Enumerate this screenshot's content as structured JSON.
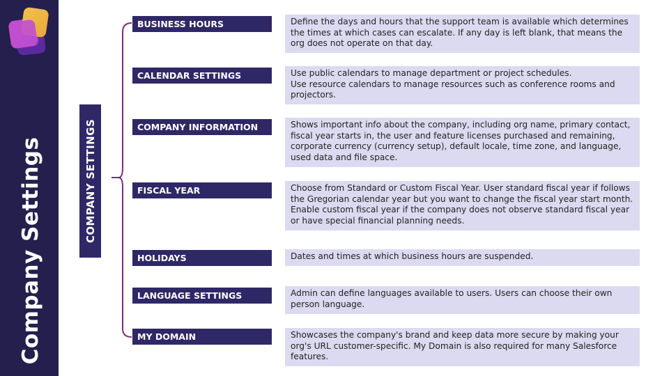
{
  "page_title": "Company Settings",
  "section_label": "COMPANY SETTINGS",
  "colors": {
    "sidebar": "#241f4c",
    "label_bg": "#2f2866",
    "desc_bg": "#dcdaf0",
    "connector": "#7b2d7a"
  },
  "rows": [
    {
      "label": "BUSINESS HOURS",
      "description": "Define the days and hours that the support team is available which determines the times at which cases can escalate. If any day is left blank, that means the org does not operate on that day."
    },
    {
      "label": "CALENDAR SETTINGS",
      "description": "Use public calendars to manage department or project schedules.\nUse resource calendars to manage resources such as conference rooms and projectors."
    },
    {
      "label": "COMPANY INFORMATION",
      "description": "Shows important info about the company, including org name, primary contact, fiscal year starts in, the user and feature licenses purchased and remaining, corporate currency (currency setup), default locale, time zone, and language, used data and file space."
    },
    {
      "label": "FISCAL YEAR",
      "description": "Choose from Standard or Custom Fiscal Year. User standard fiscal year if follows the Gregorian calendar year but you want to change the fiscal year start month. Enable custom fiscal year if the company does not observe standard fiscal year or have special financial planning needs."
    },
    {
      "label": "HOLIDAYS",
      "description": "Dates and times at which business hours are suspended."
    },
    {
      "label": "LANGUAGE SETTINGS",
      "description": "Admin can define languages available to users. Users can choose their own person language."
    },
    {
      "label": "MY DOMAIN",
      "description": "Showcases the company's brand and keep data more secure by making your org's URL customer-specific. My Domain is also required for many Salesforce features."
    }
  ]
}
